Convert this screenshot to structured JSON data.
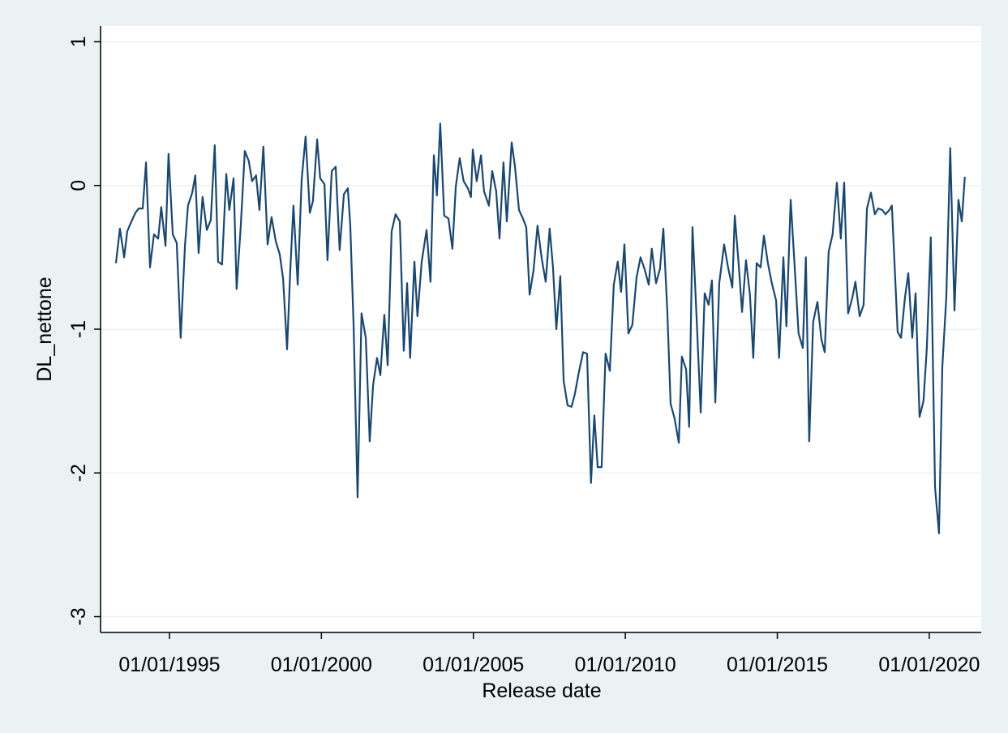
{
  "chart_data": {
    "type": "line",
    "x_label": "Release date",
    "y_label": "DL_nettone",
    "xlim": [
      1992.76,
      2021.71
    ],
    "ylim": [
      -3.11,
      1.11
    ],
    "xticks": [
      {
        "value": 1995,
        "label": "01/01/1995"
      },
      {
        "value": 2000,
        "label": "01/01/2000"
      },
      {
        "value": 2005,
        "label": "01/01/2005"
      },
      {
        "value": 2010,
        "label": "01/01/2010"
      },
      {
        "value": 2015,
        "label": "01/01/2015"
      },
      {
        "value": 2020,
        "label": "01/01/2020"
      }
    ],
    "yticks": [
      1,
      0,
      -1,
      -2,
      -3
    ],
    "grid": true,
    "series": [
      {
        "color": "#1a476f",
        "x": [
          1993.24,
          1993.37,
          1993.51,
          1993.61,
          1993.75,
          1993.88,
          1993.99,
          1994.12,
          1994.23,
          1994.36,
          1994.49,
          1994.63,
          1994.73,
          1994.87,
          1994.97,
          1995.11,
          1995.24,
          1995.37,
          1995.51,
          1995.61,
          1995.75,
          1995.85,
          1995.96,
          1996.09,
          1996.23,
          1996.36,
          1996.49,
          1996.6,
          1996.73,
          1996.87,
          1996.97,
          1997.11,
          1997.21,
          1997.35,
          1997.48,
          1997.61,
          1997.72,
          1997.85,
          1997.96,
          1998.09,
          1998.23,
          1998.36,
          1998.5,
          1998.63,
          1998.74,
          1998.87,
          1998.98,
          1999.08,
          1999.22,
          1999.35,
          1999.48,
          1999.62,
          1999.72,
          1999.86,
          1999.96,
          2000.1,
          2000.2,
          2000.34,
          2000.47,
          2000.6,
          2000.74,
          2000.87,
          2000.95,
          2001.06,
          2001.19,
          2001.32,
          2001.46,
          2001.59,
          2001.7,
          2001.83,
          2001.94,
          2002.07,
          2002.18,
          2002.31,
          2002.44,
          2002.58,
          2002.71,
          2002.82,
          2002.92,
          2003.06,
          2003.16,
          2003.3,
          2003.46,
          2003.59,
          2003.7,
          2003.8,
          2003.91,
          2004.04,
          2004.18,
          2004.31,
          2004.42,
          2004.55,
          2004.68,
          2004.82,
          2004.92,
          2004.98,
          2005.11,
          2005.25,
          2005.35,
          2005.51,
          2005.62,
          2005.75,
          2005.86,
          2005.99,
          2006.1,
          2006.26,
          2006.37,
          2006.5,
          2006.63,
          2006.74,
          2006.85,
          2006.98,
          2007.11,
          2007.25,
          2007.38,
          2007.51,
          2007.62,
          2007.73,
          2007.86,
          2007.97,
          2008.1,
          2008.23,
          2008.34,
          2008.47,
          2008.61,
          2008.74,
          2008.87,
          2008.98,
          2009.09,
          2009.22,
          2009.35,
          2009.49,
          2009.62,
          2009.75,
          2009.86,
          2009.97,
          2010.1,
          2010.23,
          2010.37,
          2010.5,
          2010.63,
          2010.77,
          2010.87,
          2011.01,
          2011.14,
          2011.25,
          2011.38,
          2011.49,
          2011.62,
          2011.76,
          2011.86,
          2012.0,
          2012.1,
          2012.21,
          2012.34,
          2012.48,
          2012.61,
          2012.74,
          2012.85,
          2012.96,
          2013.09,
          2013.25,
          2013.38,
          2013.52,
          2013.6,
          2013.73,
          2013.84,
          2013.97,
          2014.1,
          2014.21,
          2014.32,
          2014.45,
          2014.56,
          2014.69,
          2014.82,
          2014.96,
          2015.06,
          2015.2,
          2015.3,
          2015.44,
          2015.57,
          2015.7,
          2015.84,
          2015.94,
          2016.05,
          2016.18,
          2016.32,
          2016.45,
          2016.56,
          2016.69,
          2016.82,
          2016.96,
          2017.09,
          2017.2,
          2017.33,
          2017.47,
          2017.57,
          2017.71,
          2017.84,
          2017.95,
          2018.08,
          2018.21,
          2018.32,
          2018.45,
          2018.56,
          2018.69,
          2018.77,
          2018.96,
          2019.07,
          2019.2,
          2019.31,
          2019.44,
          2019.55,
          2019.68,
          2019.81,
          2019.92,
          2020.05,
          2020.19,
          2020.32,
          2020.43,
          2020.56,
          2020.69,
          2020.83,
          2020.96,
          2021.07,
          2021.17
        ],
        "values": [
          -0.54,
          -0.3,
          -0.5,
          -0.32,
          -0.25,
          -0.19,
          -0.16,
          -0.16,
          0.16,
          -0.57,
          -0.34,
          -0.37,
          -0.15,
          -0.42,
          0.22,
          -0.34,
          -0.4,
          -1.06,
          -0.42,
          -0.14,
          -0.05,
          0.07,
          -0.47,
          -0.08,
          -0.31,
          -0.24,
          0.28,
          -0.53,
          -0.55,
          0.08,
          -0.17,
          0.05,
          -0.72,
          -0.27,
          0.24,
          0.17,
          0.03,
          0.07,
          -0.17,
          0.27,
          -0.41,
          -0.22,
          -0.39,
          -0.48,
          -0.65,
          -1.14,
          -0.57,
          -0.14,
          -0.69,
          0.04,
          0.34,
          -0.19,
          -0.11,
          0.32,
          0.05,
          0.01,
          -0.52,
          0.1,
          0.13,
          -0.45,
          -0.06,
          -0.02,
          -0.28,
          -0.98,
          -2.17,
          -0.89,
          -1.06,
          -1.78,
          -1.39,
          -1.2,
          -1.32,
          -0.9,
          -1.25,
          -0.32,
          -0.2,
          -0.25,
          -1.15,
          -0.68,
          -1.2,
          -0.53,
          -0.91,
          -0.53,
          -0.31,
          -0.67,
          0.21,
          -0.07,
          0.43,
          -0.21,
          -0.23,
          -0.44,
          -0.01,
          0.19,
          0.03,
          -0.02,
          -0.08,
          0.25,
          0.03,
          0.21,
          -0.04,
          -0.14,
          0.1,
          -0.04,
          -0.37,
          0.16,
          -0.25,
          0.3,
          0.13,
          -0.17,
          -0.23,
          -0.29,
          -0.76,
          -0.59,
          -0.28,
          -0.51,
          -0.67,
          -0.3,
          -0.57,
          -1.0,
          -0.63,
          -1.36,
          -1.53,
          -1.54,
          -1.45,
          -1.3,
          -1.16,
          -1.17,
          -2.07,
          -1.6,
          -1.96,
          -1.96,
          -1.17,
          -1.29,
          -0.69,
          -0.53,
          -0.74,
          -0.41,
          -1.03,
          -0.97,
          -0.64,
          -0.5,
          -0.58,
          -0.69,
          -0.44,
          -0.68,
          -0.58,
          -0.3,
          -0.87,
          -1.52,
          -1.62,
          -1.79,
          -1.19,
          -1.28,
          -1.68,
          -0.29,
          -0.9,
          -1.58,
          -0.75,
          -0.83,
          -0.66,
          -1.51,
          -0.68,
          -0.41,
          -0.57,
          -0.71,
          -0.21,
          -0.55,
          -0.88,
          -0.52,
          -0.76,
          -1.2,
          -0.54,
          -0.57,
          -0.35,
          -0.54,
          -0.68,
          -0.8,
          -1.2,
          -0.5,
          -0.98,
          -0.1,
          -0.56,
          -1.03,
          -1.13,
          -0.5,
          -1.78,
          -0.95,
          -0.81,
          -1.07,
          -1.16,
          -0.46,
          -0.34,
          0.02,
          -0.37,
          0.02,
          -0.89,
          -0.78,
          -0.67,
          -0.91,
          -0.83,
          -0.16,
          -0.05,
          -0.2,
          -0.16,
          -0.17,
          -0.2,
          -0.17,
          -0.14,
          -1.02,
          -1.06,
          -0.78,
          -0.61,
          -1.06,
          -0.75,
          -1.61,
          -1.5,
          -1.13,
          -0.36,
          -2.1,
          -2.42,
          -1.26,
          -0.78,
          0.26,
          -0.87,
          -0.1,
          -0.25,
          0.06
        ]
      }
    ]
  }
}
